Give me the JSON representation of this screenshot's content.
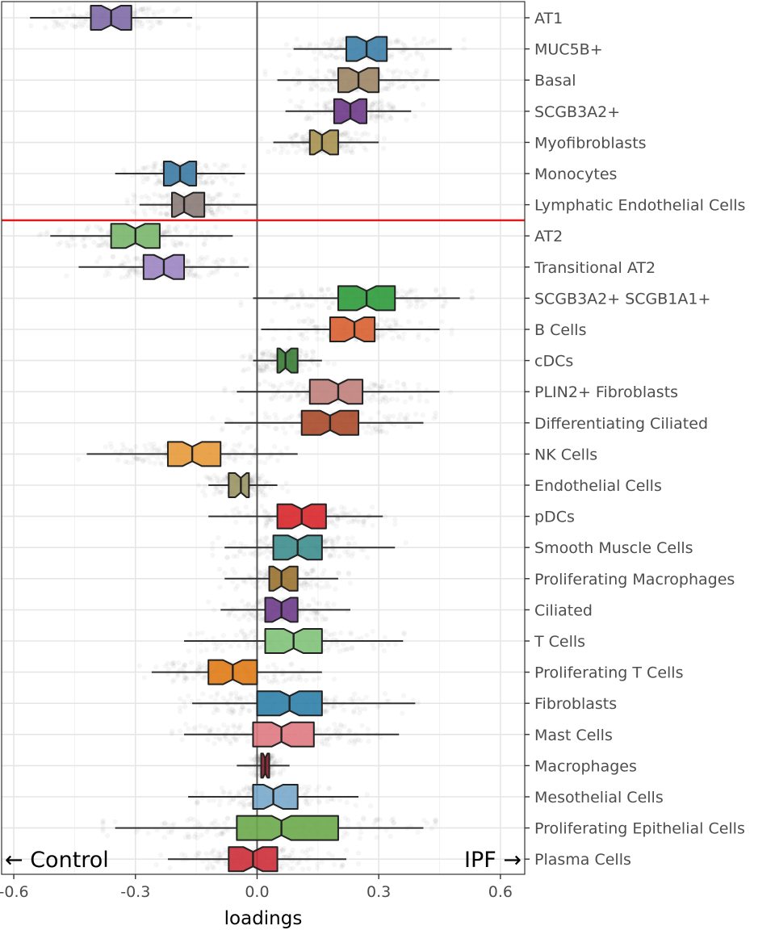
{
  "chart_data": {
    "type": "boxplot",
    "orientation": "horizontal",
    "notched": true,
    "xlabel": "loadings",
    "xlim": [
      -0.63,
      0.66
    ],
    "xticks": [
      {
        "value": -0.6,
        "label": "-0.6"
      },
      {
        "value": -0.3,
        "label": "-0.3"
      },
      {
        "value": 0.0,
        "label": "0.0"
      },
      {
        "value": 0.3,
        "label": "0.3"
      },
      {
        "value": 0.6,
        "label": "0.6"
      }
    ],
    "reference_line": {
      "x": 0.0,
      "color": "#555555"
    },
    "separator": {
      "after_category": "Lymphatic Endothelial Cells",
      "color": "#e41a1c"
    },
    "annotations": [
      {
        "text": "← Control",
        "side": "left"
      },
      {
        "text": "IPF →",
        "side": "right"
      }
    ],
    "grid": true,
    "series": [
      {
        "name": "AT1",
        "whisker_low": -0.56,
        "q1": -0.41,
        "median": -0.36,
        "q3": -0.31,
        "whisker_high": -0.16,
        "color": "#7e6aa6"
      },
      {
        "name": "MUC5B+",
        "whisker_low": 0.09,
        "q1": 0.22,
        "median": 0.27,
        "q3": 0.32,
        "whisker_high": 0.48,
        "color": "#3d7fa8"
      },
      {
        "name": "Basal",
        "whisker_low": 0.05,
        "q1": 0.2,
        "median": 0.25,
        "q3": 0.3,
        "whisker_high": 0.45,
        "color": "#9c8566"
      },
      {
        "name": "SCGB3A2+",
        "whisker_low": 0.07,
        "q1": 0.19,
        "median": 0.23,
        "q3": 0.27,
        "whisker_high": 0.38,
        "color": "#6e3a8a"
      },
      {
        "name": "Myofibroblasts",
        "whisker_low": 0.04,
        "q1": 0.13,
        "median": 0.16,
        "q3": 0.2,
        "whisker_high": 0.3,
        "color": "#a89150"
      },
      {
        "name": "Monocytes",
        "whisker_low": -0.35,
        "q1": -0.23,
        "median": -0.19,
        "q3": -0.15,
        "whisker_high": -0.03,
        "color": "#3d7aa3"
      },
      {
        "name": "Lymphatic Endothelial Cells",
        "whisker_low": -0.29,
        "q1": -0.21,
        "median": -0.18,
        "q3": -0.13,
        "whisker_high": 0.0,
        "color": "#8a7b78"
      },
      {
        "name": "AT2",
        "whisker_low": -0.51,
        "q1": -0.36,
        "median": -0.3,
        "q3": -0.24,
        "whisker_high": -0.06,
        "color": "#79b66b"
      },
      {
        "name": "Transitional AT2",
        "whisker_low": -0.44,
        "q1": -0.28,
        "median": -0.23,
        "q3": -0.18,
        "whisker_high": -0.02,
        "color": "#9c86c2"
      },
      {
        "name": "SCGB3A2+ SCGB1A1+",
        "whisker_low": -0.01,
        "q1": 0.2,
        "median": 0.27,
        "q3": 0.34,
        "whisker_high": 0.5,
        "color": "#2e9a3a"
      },
      {
        "name": "B Cells",
        "whisker_low": 0.01,
        "q1": 0.18,
        "median": 0.24,
        "q3": 0.29,
        "whisker_high": 0.45,
        "color": "#d95f30"
      },
      {
        "name": "cDCs",
        "whisker_low": -0.01,
        "q1": 0.05,
        "median": 0.07,
        "q3": 0.1,
        "whisker_high": 0.16,
        "color": "#3a7d35"
      },
      {
        "name": "PLIN2+ Fibroblasts",
        "whisker_low": -0.05,
        "q1": 0.13,
        "median": 0.2,
        "q3": 0.26,
        "whisker_high": 0.45,
        "color": "#c07f7a"
      },
      {
        "name": "Differentiating Ciliated",
        "whisker_low": -0.08,
        "q1": 0.11,
        "median": 0.18,
        "q3": 0.25,
        "whisker_high": 0.41,
        "color": "#a8492a"
      },
      {
        "name": "NK Cells",
        "whisker_low": -0.42,
        "q1": -0.22,
        "median": -0.16,
        "q3": -0.09,
        "whisker_high": 0.1,
        "color": "#e79a3a"
      },
      {
        "name": "Endothelial Cells",
        "whisker_low": -0.12,
        "q1": -0.07,
        "median": -0.04,
        "q3": -0.02,
        "whisker_high": 0.05,
        "color": "#9b9565"
      },
      {
        "name": "pDCs",
        "whisker_low": -0.12,
        "q1": 0.05,
        "median": 0.11,
        "q3": 0.17,
        "whisker_high": 0.31,
        "color": "#d8262a"
      },
      {
        "name": "Smooth Muscle Cells",
        "whisker_low": -0.08,
        "q1": 0.04,
        "median": 0.1,
        "q3": 0.16,
        "whisker_high": 0.34,
        "color": "#3e8e8e"
      },
      {
        "name": "Proliferating Macrophages",
        "whisker_low": -0.08,
        "q1": 0.03,
        "median": 0.06,
        "q3": 0.1,
        "whisker_high": 0.2,
        "color": "#9a7230"
      },
      {
        "name": "Ciliated",
        "whisker_low": -0.09,
        "q1": 0.02,
        "median": 0.06,
        "q3": 0.1,
        "whisker_high": 0.23,
        "color": "#6e3b8a"
      },
      {
        "name": "T Cells",
        "whisker_low": -0.18,
        "q1": 0.02,
        "median": 0.09,
        "q3": 0.16,
        "whisker_high": 0.36,
        "color": "#82c27a"
      },
      {
        "name": "Proliferating T Cells",
        "whisker_low": -0.26,
        "q1": -0.12,
        "median": -0.06,
        "q3": 0.0,
        "whisker_high": 0.16,
        "color": "#e07b15"
      },
      {
        "name": "Fibroblasts",
        "whisker_low": -0.16,
        "q1": 0.0,
        "median": 0.08,
        "q3": 0.16,
        "whisker_high": 0.39,
        "color": "#2e7fa8"
      },
      {
        "name": "Mast Cells",
        "whisker_low": -0.18,
        "q1": -0.01,
        "median": 0.06,
        "q3": 0.14,
        "whisker_high": 0.35,
        "color": "#e07a82"
      },
      {
        "name": "Macrophages",
        "whisker_low": -0.05,
        "q1": 0.01,
        "median": 0.02,
        "q3": 0.03,
        "whisker_high": 0.08,
        "color": "#8a1f2a"
      },
      {
        "name": "Mesothelial Cells",
        "whisker_low": -0.17,
        "q1": -0.01,
        "median": 0.04,
        "q3": 0.1,
        "whisker_high": 0.25,
        "color": "#7aa8cc"
      },
      {
        "name": "Proliferating Epithelial Cells",
        "whisker_low": -0.35,
        "q1": -0.05,
        "median": 0.06,
        "q3": 0.2,
        "whisker_high": 0.41,
        "color": "#6aa84a"
      },
      {
        "name": "Plasma Cells",
        "whisker_low": -0.22,
        "q1": -0.07,
        "median": -0.01,
        "q3": 0.05,
        "whisker_high": 0.22,
        "color": "#cc2e3a"
      }
    ]
  }
}
